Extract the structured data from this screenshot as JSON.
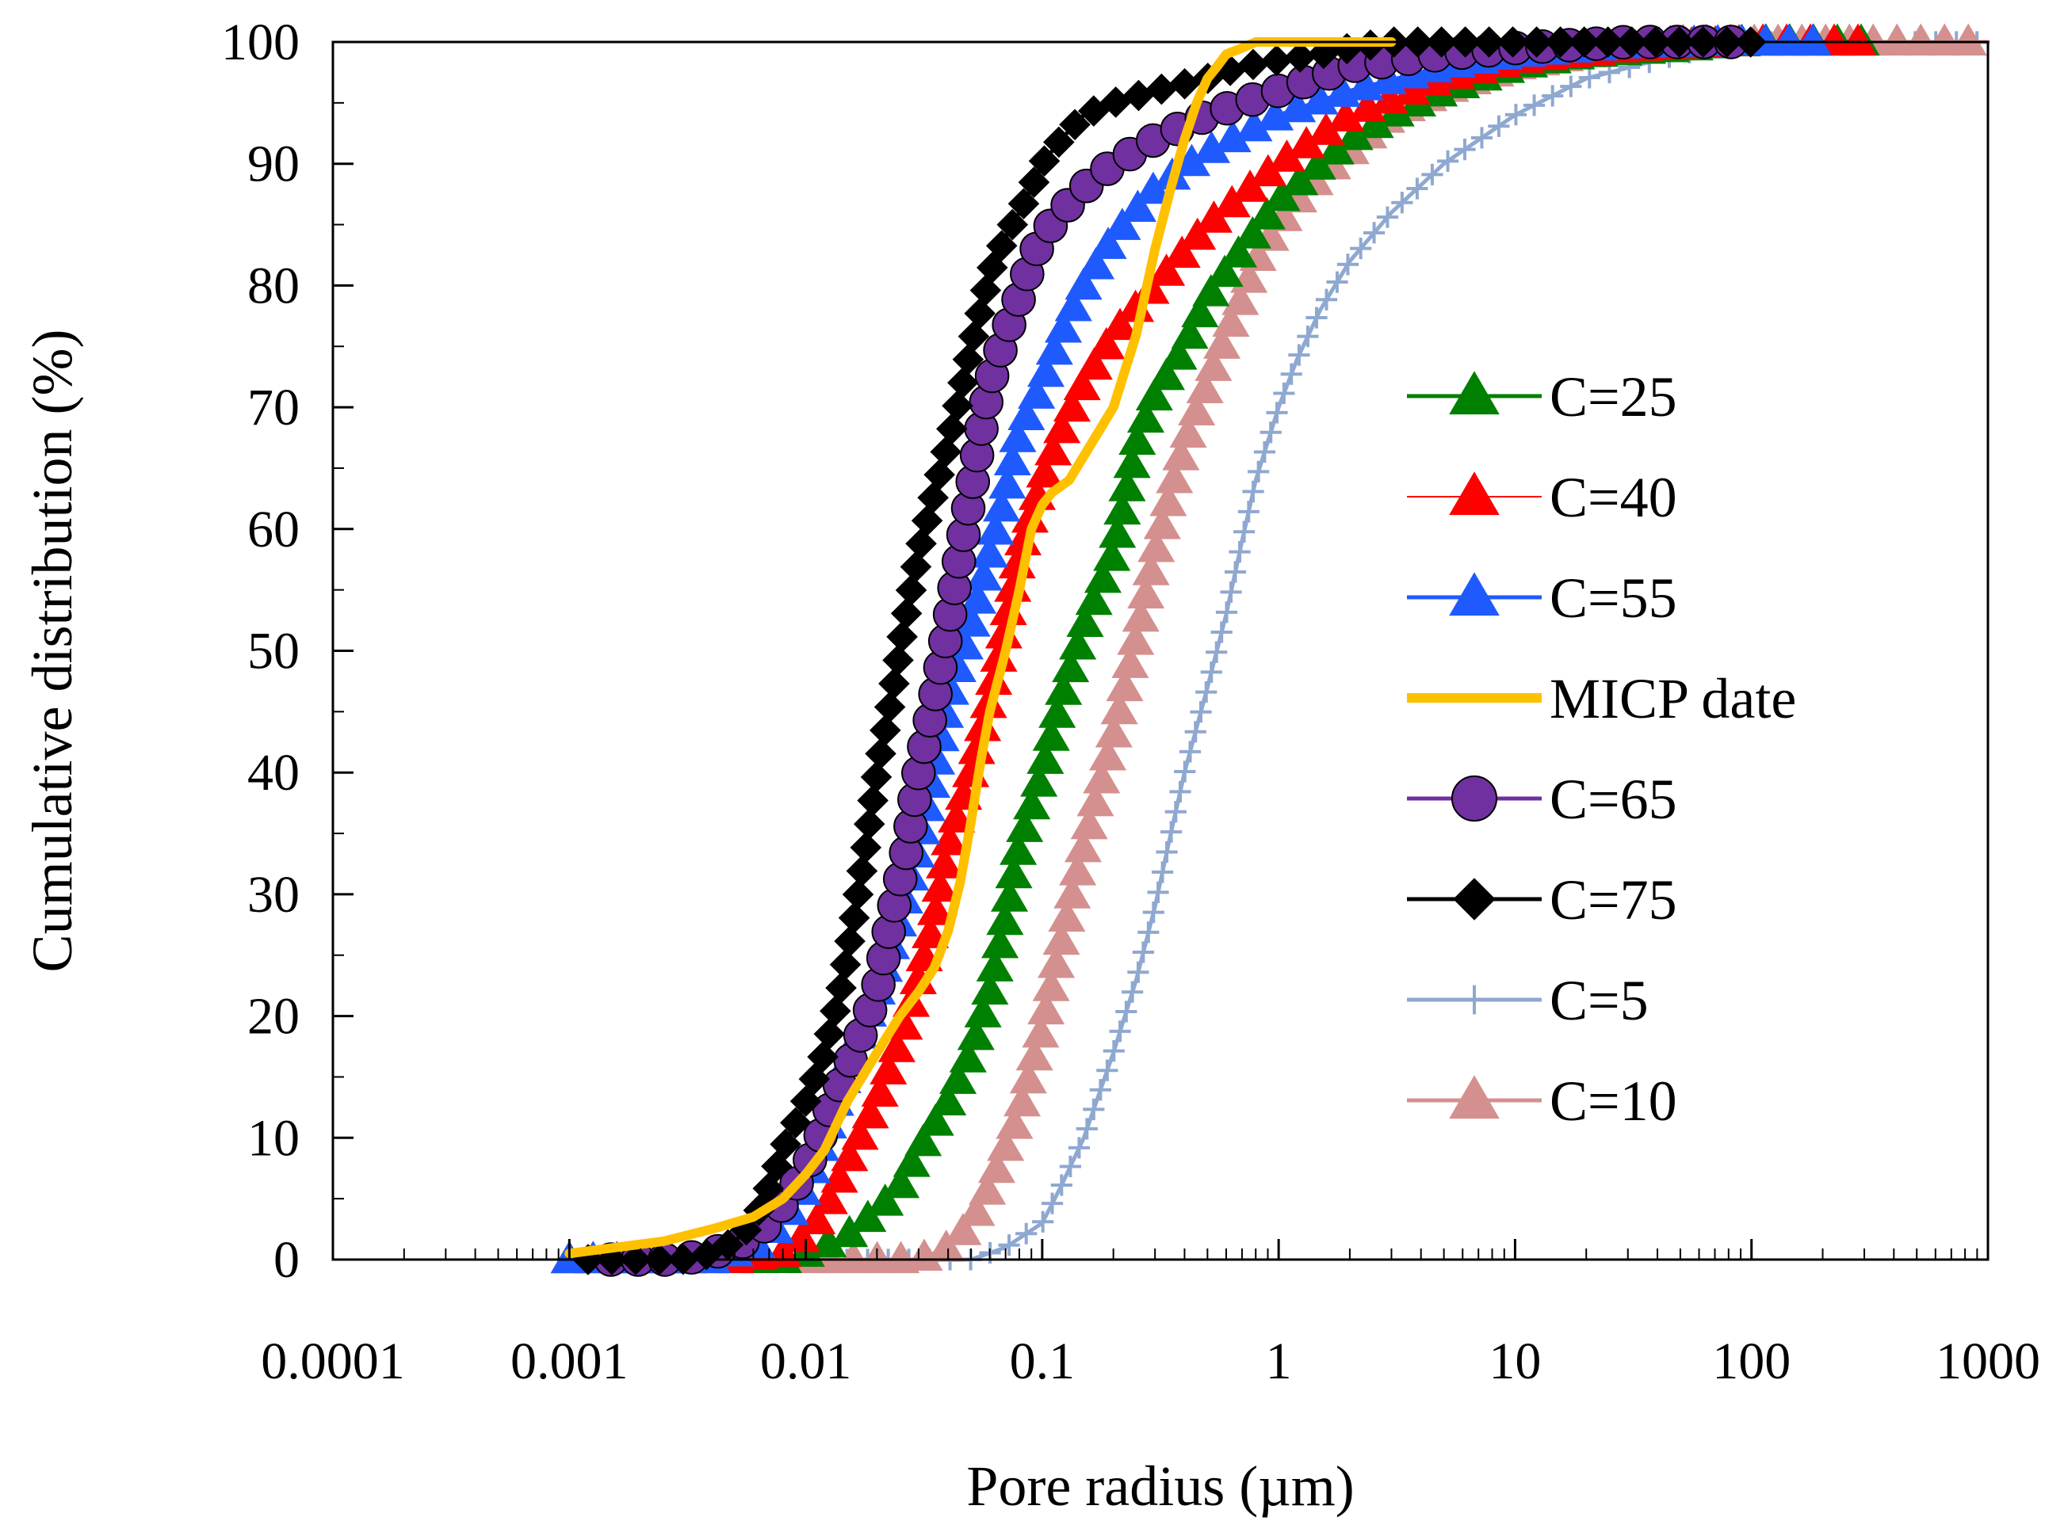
{
  "chart_data": {
    "type": "line",
    "title": "",
    "xlabel": "Pore radius (µm)",
    "ylabel": "Cumulative distribution (%)",
    "xscale": "log",
    "xlim": [
      0.0001,
      1000
    ],
    "ylim": [
      0,
      100
    ],
    "x_ticks": [
      0.0001,
      0.001,
      0.01,
      0.1,
      1,
      10,
      100,
      1000
    ],
    "x_tick_labels": [
      "0.0001",
      "0.001",
      "0.01",
      "0.1",
      "1",
      "10",
      "100",
      "1000"
    ],
    "y_ticks": [
      0,
      10,
      20,
      30,
      40,
      50,
      60,
      70,
      80,
      90,
      100
    ],
    "y_tick_labels": [
      "0",
      "10",
      "20",
      "30",
      "40",
      "50",
      "60",
      "70",
      "80",
      "90",
      "100"
    ],
    "grid": false,
    "legend_position": "right",
    "series": [
      {
        "name": "C=25",
        "color": "#008000",
        "marker": "triangle",
        "line_width": 5,
        "x": [
          0.001,
          0.008,
          0.01,
          0.015,
          0.02,
          0.025,
          0.03,
          0.04,
          0.05,
          0.06,
          0.07,
          0.08,
          0.1,
          0.12,
          0.15,
          0.2,
          0.25,
          0.3,
          0.4,
          0.5,
          0.7,
          1,
          1.5,
          2,
          3,
          5,
          10,
          20,
          50,
          100,
          200,
          300
        ],
        "y": [
          0,
          0,
          0.5,
          2,
          4,
          6,
          9,
          13,
          17,
          22,
          28,
          34,
          40,
          46,
          52,
          58,
          67,
          71,
          75,
          79,
          83,
          87,
          90,
          92,
          94,
          96,
          98,
          99,
          99.5,
          100,
          100,
          100
        ]
      },
      {
        "name": "C=40",
        "color": "#ff0000",
        "marker": "triangle",
        "line_width": 2,
        "x": [
          0.001,
          0.005,
          0.008,
          0.01,
          0.012,
          0.015,
          0.02,
          0.025,
          0.03,
          0.035,
          0.04,
          0.05,
          0.06,
          0.07,
          0.08,
          0.1,
          0.12,
          0.15,
          0.2,
          0.3,
          0.5,
          1,
          2,
          5,
          10,
          30,
          100,
          300
        ],
        "y": [
          0,
          0,
          0.5,
          2,
          4,
          8,
          13,
          18,
          23,
          28,
          34,
          40,
          46,
          52,
          58,
          64,
          68,
          72,
          76,
          80,
          85,
          90,
          94,
          97,
          98.5,
          99.5,
          100,
          100
        ]
      },
      {
        "name": "C=55",
        "color": "#1f5aff",
        "marker": "triangle",
        "line_width": 5,
        "x": [
          0.001,
          0.004,
          0.006,
          0.008,
          0.01,
          0.012,
          0.015,
          0.02,
          0.025,
          0.03,
          0.035,
          0.04,
          0.05,
          0.06,
          0.07,
          0.08,
          0.1,
          0.12,
          0.15,
          0.2,
          0.3,
          0.5,
          1,
          2,
          5,
          10,
          30,
          100,
          200
        ],
        "y": [
          0,
          0,
          1,
          3,
          6,
          10,
          16,
          22,
          28,
          34,
          40,
          46,
          52,
          58,
          63,
          68,
          72,
          76,
          80,
          84,
          88,
          91,
          94,
          96,
          98,
          99,
          99.8,
          100,
          100
        ]
      },
      {
        "name": "MICP date",
        "color": "#ffc000",
        "marker": "none",
        "line_width": 12,
        "x": [
          0.001,
          0.0025,
          0.004,
          0.006,
          0.008,
          0.01,
          0.012,
          0.015,
          0.02,
          0.025,
          0.03,
          0.035,
          0.04,
          0.045,
          0.05,
          0.055,
          0.06,
          0.07,
          0.08,
          0.09,
          0.1,
          0.11,
          0.13,
          0.15,
          0.2,
          0.25,
          0.3,
          0.35,
          0.4,
          0.45,
          0.5,
          0.55,
          0.6,
          0.7,
          0.8,
          1,
          1.5,
          2,
          3
        ],
        "y": [
          0.5,
          1.5,
          2.5,
          3.5,
          5,
          7,
          9,
          13,
          17,
          20,
          22,
          24,
          27,
          31,
          36,
          41,
          45,
          50,
          55,
          60,
          62,
          63,
          64,
          66,
          70,
          76,
          83,
          88,
          92,
          95,
          97,
          98,
          99,
          99.5,
          100,
          100,
          100,
          100,
          100
        ]
      },
      {
        "name": "C=65",
        "color": "#7030a0",
        "edge_color": "#000000",
        "marker": "circle",
        "line_width": 5,
        "x": [
          0.0015,
          0.003,
          0.005,
          0.007,
          0.009,
          0.011,
          0.013,
          0.016,
          0.02,
          0.023,
          0.027,
          0.03,
          0.035,
          0.04,
          0.045,
          0.05,
          0.055,
          0.06,
          0.07,
          0.08,
          0.09,
          0.1,
          0.12,
          0.15,
          0.2,
          0.3,
          0.5,
          1,
          2,
          5,
          10,
          30,
          100
        ],
        "y": [
          0,
          0,
          1,
          3,
          6,
          9,
          13,
          17,
          22,
          28,
          34,
          40,
          46,
          52,
          58,
          63,
          68,
          72,
          76,
          79,
          82,
          84,
          86,
          88,
          90,
          92,
          94,
          96,
          98,
          99,
          99.5,
          100,
          100
        ]
      },
      {
        "name": "C=75",
        "color": "#000000",
        "marker": "diamond",
        "line_width": 5,
        "x": [
          0.0012,
          0.002,
          0.003,
          0.004,
          0.005,
          0.006,
          0.007,
          0.008,
          0.01,
          0.012,
          0.014,
          0.016,
          0.018,
          0.02,
          0.023,
          0.026,
          0.03,
          0.035,
          0.04,
          0.045,
          0.05,
          0.055,
          0.06,
          0.07,
          0.08,
          0.09,
          0.1,
          0.12,
          0.15,
          0.2,
          0.3,
          0.5,
          0.7,
          1,
          1.5,
          2,
          3,
          5,
          7,
          10,
          15,
          20,
          30,
          50,
          100
        ],
        "y": [
          0,
          0,
          0,
          0.5,
          1.5,
          3,
          6,
          9,
          13,
          17,
          22,
          28,
          34,
          40,
          46,
          52,
          58,
          63,
          67,
          71,
          75,
          78,
          81,
          84,
          86,
          88,
          90,
          92,
          94,
          95,
          96,
          97,
          98,
          98.5,
          99,
          99.5,
          100,
          100,
          100,
          100,
          100,
          100,
          100,
          100,
          100
        ]
      },
      {
        "name": "C=5",
        "color": "#8fa8d0",
        "marker": "plus",
        "line_width": 5,
        "x": [
          0.01,
          0.03,
          0.05,
          0.07,
          0.1,
          0.12,
          0.15,
          0.2,
          0.25,
          0.3,
          0.35,
          0.4,
          0.5,
          0.6,
          0.7,
          0.8,
          1,
          1.2,
          1.5,
          2,
          3,
          5,
          10,
          20,
          50,
          100,
          300,
          1000
        ],
        "y": [
          0,
          0,
          0,
          1,
          3,
          6,
          10,
          17,
          23,
          29,
          35,
          40,
          47,
          53,
          59,
          64,
          70,
          74,
          78,
          82,
          86,
          90,
          94,
          97,
          99,
          100,
          100,
          100
        ]
      },
      {
        "name": "C=10",
        "color": "#d4908e",
        "marker": "triangle",
        "line_width": 5,
        "x": [
          0.01,
          0.02,
          0.03,
          0.04,
          0.05,
          0.06,
          0.08,
          0.1,
          0.12,
          0.15,
          0.2,
          0.25,
          0.3,
          0.35,
          0.4,
          0.5,
          0.6,
          0.7,
          0.8,
          1,
          1.2,
          1.5,
          2,
          3,
          5,
          10,
          20,
          50,
          100,
          300,
          1000
        ],
        "y": [
          0,
          0,
          0,
          1,
          3,
          6,
          12,
          19,
          26,
          34,
          43,
          51,
          58,
          63,
          67,
          72,
          76,
          79,
          82,
          85,
          87,
          89,
          91,
          94,
          96,
          98,
          99,
          100,
          100,
          100,
          100
        ]
      }
    ]
  }
}
